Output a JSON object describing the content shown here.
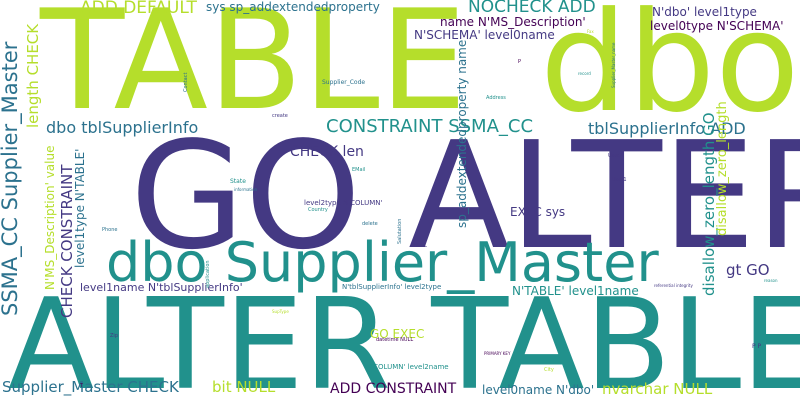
{
  "colors": {
    "background": "#ffffff",
    "green": "#b5de2b",
    "teal": "#21918c",
    "purple": "#443983",
    "dark": "#440154",
    "mid": "#2c728e",
    "light": "#35b779"
  },
  "words": {
    "table_large": "TABLE",
    "dbo_large": "dbo",
    "go_alter": "GO ALTER",
    "alter_table": "ALTER TABLE",
    "dbo_supplier_master": "dbo Supplier_Master",
    "add_default": "ADD DEFAULT",
    "sys_sp_addextendedproperty": "sys sp_addextendedproperty",
    "nocheck_add": "NOCHECK ADD",
    "n_dbo_level1type": "N'dbo' level1type",
    "name_ms_description": "name N'MS_Description'",
    "level0type_n_schema": "level0type N'SCHEMA'",
    "n_schema_level0name": "N'SCHEMA' level0name",
    "ssma_cc_supplier_master": "SSMA_CC Supplier_Master",
    "length_check": "length CHECK",
    "dbo_tblsupplierinfo": "dbo tblSupplierInfo",
    "constraint_ssma_cc": "CONSTRAINT SSMA_CC",
    "tblsupplierinfo_add": "tblSupplierInfo ADD",
    "check_len": "CHECK len",
    "disallow_zero_length_go": "disallow_zero_length GO",
    "ms_description_value": "N'MS_Description' value",
    "check_constraint": "CHECK CONSTRAINT",
    "level1type_n_table": "level1type N'TABLE'",
    "sp_addextendedproperty_name": "sp_addextendedproperty name",
    "exec_sys": "EXEC sys",
    "disallow_zero_length": "disallow_zero_length",
    "gt_go": "gt GO",
    "level1name_tblsupplierinfo": "level1name N'tblSupplierInfo'",
    "n_table_level1name": "N'TABLE' level1name",
    "go_exec": "GO EXEC",
    "supplier_master_check": "Supplier_Master CHECK",
    "bit_null": "bit NULL",
    "add_constraint": "ADD CONSTRAINT",
    "level0name_n_dbo": "level0name N'dbo'",
    "nvarchar_null": "nvarchar NULL",
    "n_tblsupplierinfo_level2type": "N'tblSupplierInfo' level2type",
    "n_column_level2name": "N'COLUMN' level2name",
    "level2type_n_column": "level2type N'COLUMN'",
    "supplier_code": "Supplier_Code",
    "contact": "Contact",
    "create": "create",
    "state": "State",
    "information": "information",
    "email": "EMail",
    "address": "Address",
    "country": "Country",
    "phone": "Phone",
    "delete": "delete",
    "salutation": "Salutation",
    "null": "NULL",
    "application": "application",
    "zip": "Zip",
    "datetime_null": "datetime NULL",
    "city": "City",
    "suptype": "SupType",
    "fax": "Fax",
    "p": "P",
    "record": "record",
    "supplier_master_name": "Supplier_Master_name",
    "user2": "User2",
    "user1": "User1",
    "referential_integrity": "referential integrity",
    "reason": "reason",
    "p_p": "P P",
    "primary_key": "PRIMARY KEY",
    "t": "T"
  }
}
